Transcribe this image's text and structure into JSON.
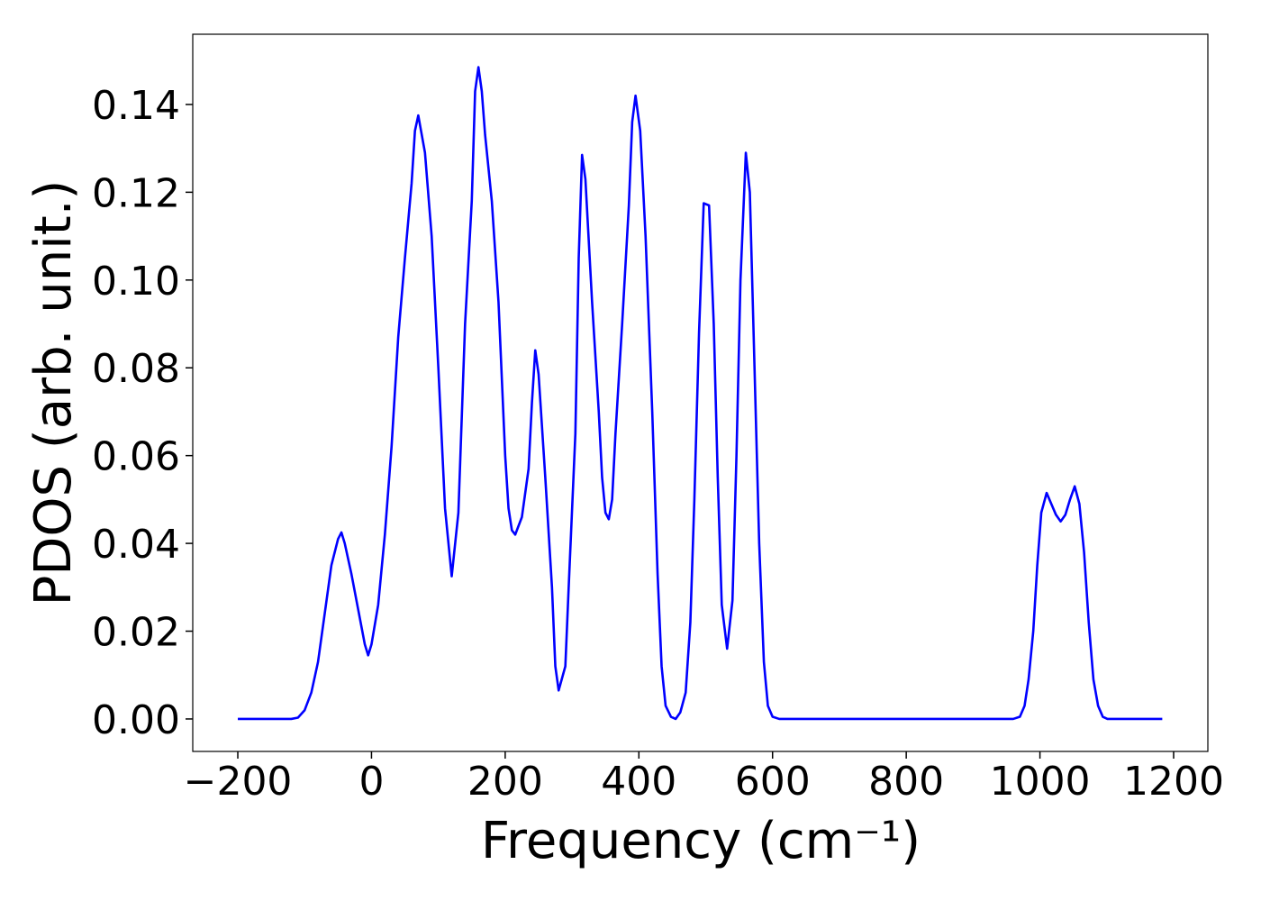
{
  "chart_data": {
    "type": "line",
    "xlabel": "Frequency (cm⁻¹)",
    "ylabel": "PDOS (arb. unit.)",
    "xlim": [
      -267.4,
      1251.2
    ],
    "ylim": [
      -0.0074,
      0.156
    ],
    "xticks": [
      {
        "value": -200,
        "label": "−200"
      },
      0,
      200,
      400,
      600,
      800,
      1000,
      1200
    ],
    "yticks": [
      {
        "value": 0,
        "label": "0.00"
      },
      {
        "value": 0.02,
        "label": "0.02"
      },
      {
        "value": 0.04,
        "label": "0.04"
      },
      {
        "value": 0.06,
        "label": "0.06"
      },
      {
        "value": 0.08,
        "label": "0.08"
      },
      {
        "value": 0.1,
        "label": "0.10"
      },
      {
        "value": 0.12,
        "label": "0.12"
      },
      {
        "value": 0.14,
        "label": "0.14"
      }
    ],
    "x": [
      -200,
      -120,
      -110,
      -100,
      -90,
      -80,
      -70,
      -60,
      -50,
      -45,
      -40,
      -30,
      -20,
      -10,
      -5,
      0,
      10,
      20,
      30,
      40,
      50,
      60,
      65,
      70,
      80,
      90,
      100,
      110,
      120,
      130,
      140,
      150,
      155,
      160,
      165,
      170,
      180,
      190,
      200,
      205,
      210,
      215,
      225,
      235,
      240,
      245,
      250,
      260,
      270,
      275,
      280,
      290,
      295,
      305,
      310,
      315,
      320,
      330,
      340,
      345,
      350,
      355,
      360,
      365,
      375,
      385,
      390,
      395,
      402,
      410,
      420,
      428,
      434,
      440,
      448,
      455,
      462,
      470,
      477,
      483,
      490,
      497,
      505,
      512,
      518,
      524,
      532,
      540,
      546,
      552,
      560,
      566,
      573,
      580,
      587,
      593,
      600,
      610,
      960,
      970,
      977,
      983,
      990,
      996,
      1002,
      1010,
      1017,
      1024,
      1031,
      1038,
      1045,
      1052,
      1059,
      1066,
      1073,
      1080,
      1087,
      1094,
      1101,
      1183
    ],
    "series": [
      {
        "color": "#0000ff",
        "values": [
          0,
          0,
          0.0003,
          0.002,
          0.006,
          0.013,
          0.024,
          0.035,
          0.041,
          0.0425,
          0.04,
          0.033,
          0.025,
          0.017,
          0.0145,
          0.017,
          0.026,
          0.042,
          0.062,
          0.087,
          0.105,
          0.122,
          0.134,
          0.1375,
          0.129,
          0.11,
          0.08,
          0.048,
          0.0325,
          0.047,
          0.09,
          0.118,
          0.143,
          0.1485,
          0.143,
          0.133,
          0.118,
          0.095,
          0.06,
          0.048,
          0.043,
          0.042,
          0.046,
          0.057,
          0.072,
          0.084,
          0.0785,
          0.055,
          0.03,
          0.012,
          0.0065,
          0.012,
          0.03,
          0.065,
          0.105,
          0.1285,
          0.123,
          0.095,
          0.07,
          0.055,
          0.047,
          0.0455,
          0.05,
          0.065,
          0.09,
          0.117,
          0.136,
          0.142,
          0.134,
          0.11,
          0.07,
          0.033,
          0.012,
          0.003,
          0.0005,
          0,
          0.0015,
          0.006,
          0.022,
          0.05,
          0.088,
          0.1175,
          0.117,
          0.09,
          0.055,
          0.026,
          0.016,
          0.027,
          0.06,
          0.1,
          0.129,
          0.12,
          0.08,
          0.04,
          0.013,
          0.003,
          0.0005,
          0,
          0,
          0.0005,
          0.003,
          0.009,
          0.02,
          0.035,
          0.047,
          0.0515,
          0.049,
          0.0465,
          0.045,
          0.0465,
          0.05,
          0.053,
          0.049,
          0.038,
          0.022,
          0.009,
          0.003,
          0.0005,
          0,
          0
        ]
      }
    ]
  }
}
